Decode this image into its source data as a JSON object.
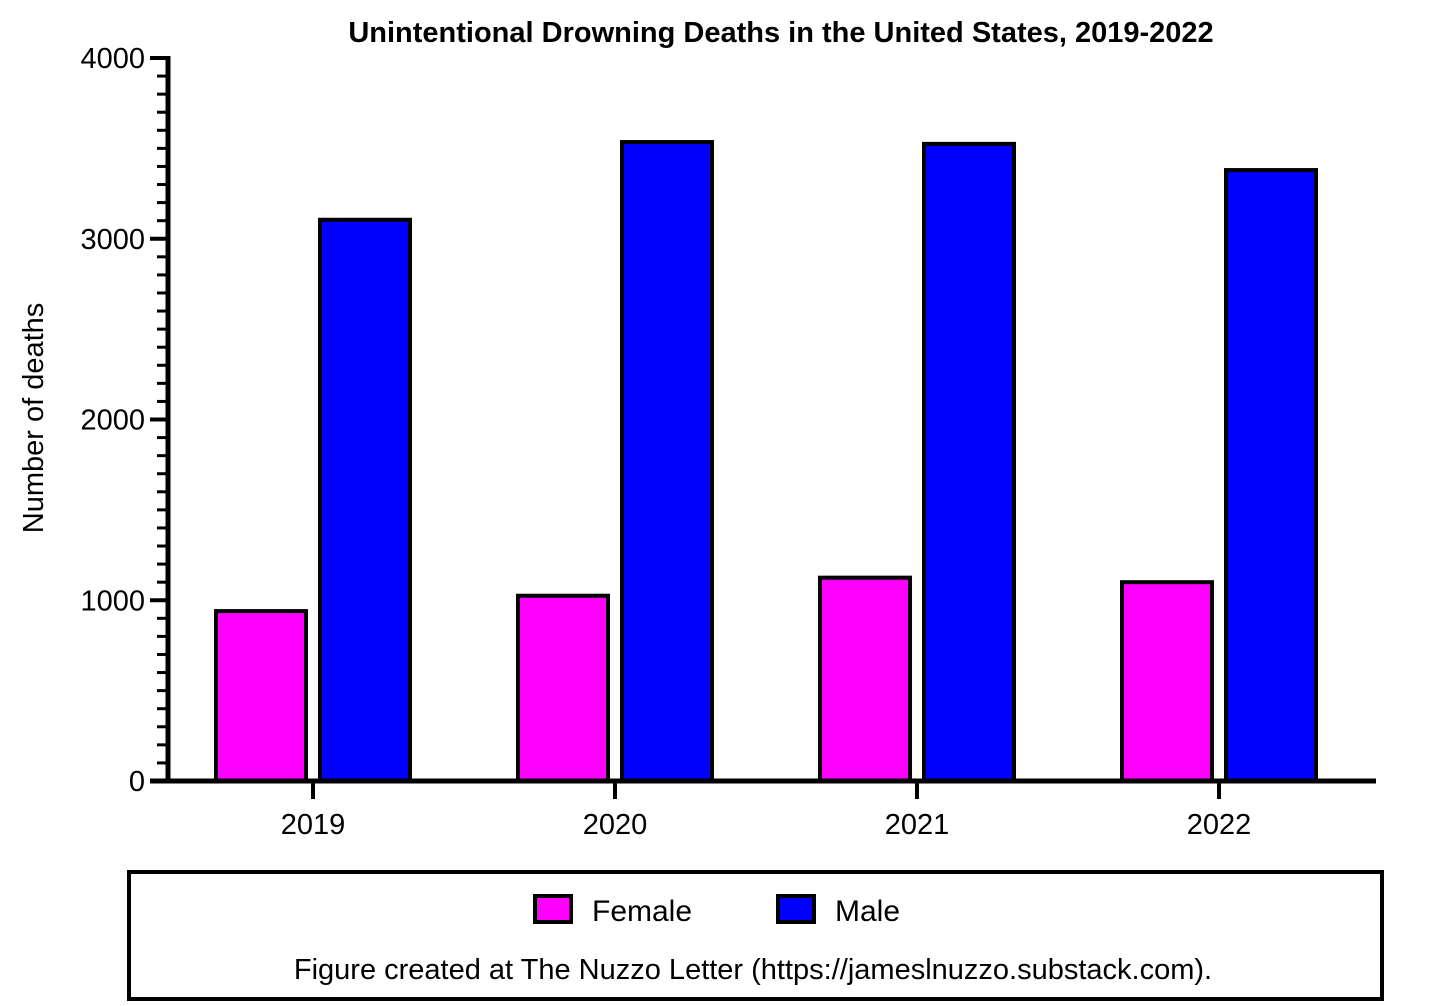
{
  "chart_data": {
    "type": "bar",
    "title": "Unintentional Drowning Deaths in the United States, 2019-2022",
    "xlabel": "",
    "ylabel": "Number of deaths",
    "categories": [
      "2019",
      "2020",
      "2021",
      "2022"
    ],
    "series": [
      {
        "name": "Female",
        "color": "#ff00ff",
        "values": [
          940,
          1025,
          1125,
          1100
        ]
      },
      {
        "name": "Male",
        "color": "#0000ff",
        "values": [
          3105,
          3535,
          3525,
          3380
        ]
      }
    ],
    "ylim": [
      0,
      4000
    ],
    "yticks": [
      "0",
      "1000",
      "2000",
      "3000",
      "4000"
    ],
    "grid": false,
    "legend_position": "bottom"
  },
  "legend": {
    "items": [
      {
        "label": "Female",
        "color": "#ff00ff"
      },
      {
        "label": "Male",
        "color": "#0000ff"
      }
    ]
  },
  "caption": "Figure created at The Nuzzo Letter (https://jameslnuzzo.substack.com)."
}
